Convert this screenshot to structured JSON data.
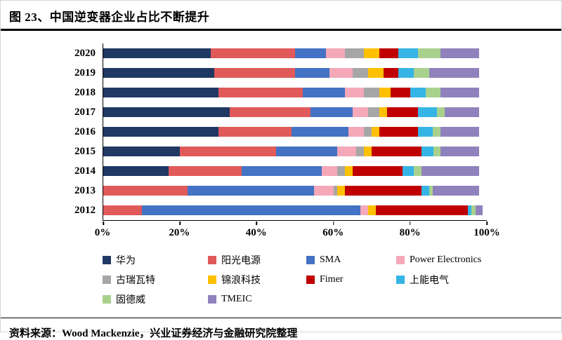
{
  "figure": {
    "title": "图 23、中国逆变器企业占比不断提升",
    "source": "资料来源：Wood Mackenzie，兴业证券经济与金融研究院整理"
  },
  "chart_data": {
    "type": "bar",
    "subtype": "horizontal-stacked",
    "title": "中国逆变器企业占比不断提升",
    "categories": [
      "2020",
      "2019",
      "2018",
      "2017",
      "2016",
      "2015",
      "2014",
      "2013",
      "2012"
    ],
    "value_unit": "percent of global market",
    "xlim": [
      0,
      100
    ],
    "x_ticks": [
      "0%",
      "20%",
      "40%",
      "60%",
      "80%",
      "100%"
    ],
    "grid": false,
    "legend_position": "bottom",
    "series": [
      {
        "name": "华为",
        "color": "#1F3864",
        "values": [
          28,
          29,
          30,
          33,
          30,
          20,
          17,
          0,
          0
        ]
      },
      {
        "name": "阳光电源",
        "color": "#E05A5A",
        "values": [
          22,
          21,
          22,
          21,
          19,
          25,
          19,
          22,
          10
        ]
      },
      {
        "name": "SMA",
        "color": "#4472C4",
        "values": [
          8,
          9,
          11,
          11,
          15,
          16,
          21,
          33,
          57
        ]
      },
      {
        "name": "Power Electronics",
        "color": "#F4A8B8",
        "values": [
          5,
          6,
          5,
          4,
          4,
          5,
          4,
          5,
          2
        ]
      },
      {
        "name": "古瑞瓦特",
        "color": "#A6A6A6",
        "values": [
          5,
          4,
          4,
          3,
          2,
          2,
          2,
          1,
          0
        ]
      },
      {
        "name": "锦浪科技",
        "color": "#FFC000",
        "values": [
          4,
          4,
          3,
          2,
          2,
          2,
          2,
          2,
          2
        ]
      },
      {
        "name": "Fimer",
        "color": "#C00000",
        "values": [
          5,
          4,
          5,
          8,
          10,
          13,
          13,
          20,
          24
        ]
      },
      {
        "name": "上能电气",
        "color": "#35B5E5",
        "values": [
          5,
          4,
          4,
          5,
          4,
          3,
          3,
          2,
          1
        ]
      },
      {
        "name": "固德威",
        "color": "#A9D18E",
        "values": [
          6,
          4,
          4,
          2,
          2,
          2,
          2,
          1,
          1
        ]
      },
      {
        "name": "TMEIC",
        "color": "#8F82BC",
        "values": [
          10,
          13,
          10,
          9,
          10,
          10,
          15,
          12,
          2
        ]
      }
    ]
  }
}
